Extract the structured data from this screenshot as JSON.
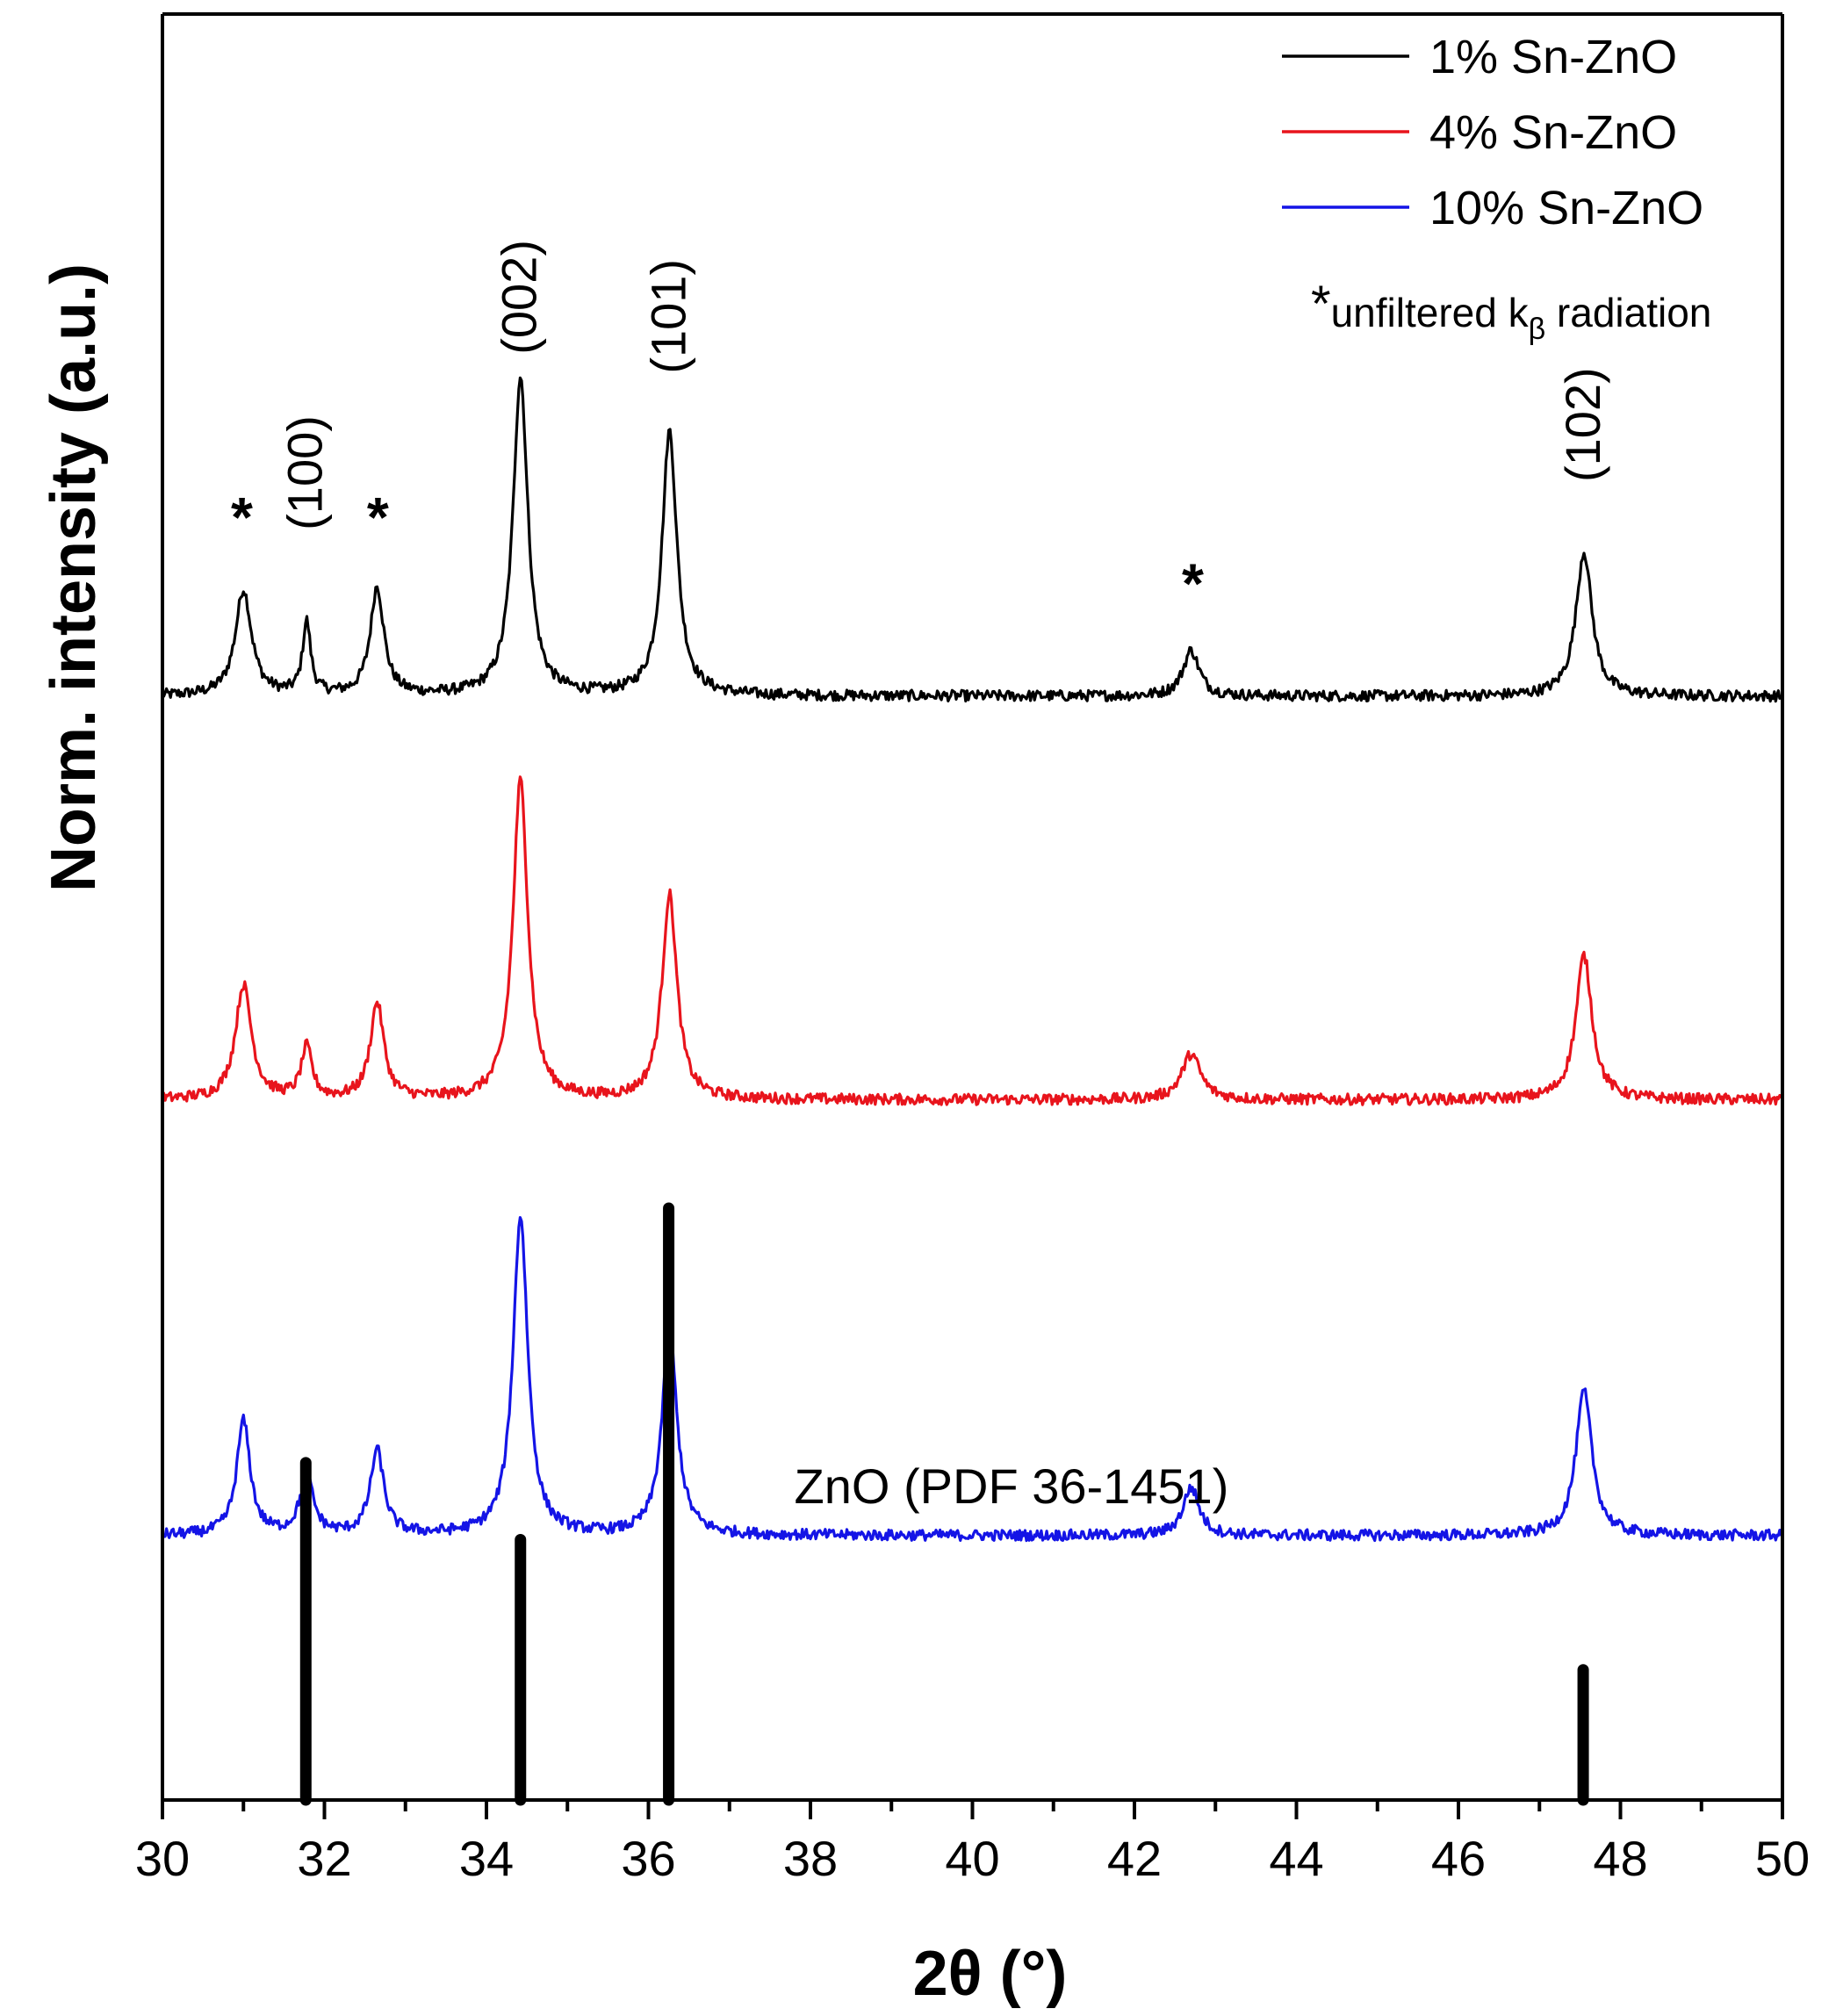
{
  "chart_data": {
    "type": "line",
    "title": "",
    "xlabel_main": "2θ",
    "xlabel_unit": "(°)",
    "ylabel": "Norm. intensity (a.u.)",
    "xlim": [
      30,
      50
    ],
    "ylim": [
      0,
      1
    ],
    "x_ticks": [
      "30",
      "32",
      "34",
      "36",
      "38",
      "40",
      "42",
      "44",
      "46",
      "48",
      "50"
    ],
    "series": [
      {
        "name": "1% Sn-ZnO",
        "color": "#000000",
        "baseline": 0.618,
        "peaks": [
          [
            31.0,
            0.88,
            0.12
          ],
          [
            31.78,
            0.6,
            0.06
          ],
          [
            32.65,
            0.9,
            0.1
          ],
          [
            34.42,
            2.65,
            0.11
          ],
          [
            36.26,
            2.2,
            0.11
          ],
          [
            42.7,
            0.38,
            0.12
          ],
          [
            47.55,
            1.2,
            0.12
          ]
        ]
      },
      {
        "name": "4% Sn-ZnO",
        "color": "#e8141c",
        "baseline": 0.392,
        "peaks": [
          [
            31.0,
            0.95,
            0.12
          ],
          [
            31.78,
            0.42,
            0.08
          ],
          [
            32.65,
            0.8,
            0.1
          ],
          [
            34.42,
            2.65,
            0.11
          ],
          [
            36.26,
            1.7,
            0.11
          ],
          [
            42.7,
            0.38,
            0.14
          ],
          [
            47.55,
            1.2,
            0.12
          ]
        ]
      },
      {
        "name": "10% Sn-ZnO",
        "color": "#1414e6",
        "baseline": 0.148,
        "peaks": [
          [
            31.0,
            0.95,
            0.1
          ],
          [
            31.78,
            0.48,
            0.1
          ],
          [
            32.65,
            0.7,
            0.1
          ],
          [
            34.42,
            2.65,
            0.11
          ],
          [
            36.26,
            1.7,
            0.11
          ],
          [
            42.7,
            0.4,
            0.12
          ],
          [
            47.55,
            1.2,
            0.12
          ]
        ]
      }
    ],
    "reference": {
      "label": "ZnO (PDF 36-1451)",
      "sticks": [
        [
          31.77,
          0.57
        ],
        [
          34.42,
          0.44
        ],
        [
          36.25,
          1.0
        ],
        [
          47.54,
          0.22
        ]
      ]
    },
    "peak_labels": [
      {
        "text": "(100)",
        "x": 31.77,
        "y": 1.38
      },
      {
        "text": "(002)",
        "x": 34.42,
        "y": 2.84
      },
      {
        "text": "(101)",
        "x": 36.26,
        "y": 2.68
      },
      {
        "text": "(102)",
        "x": 47.55,
        "y": 1.78
      }
    ],
    "asterisks": [
      {
        "text": "*",
        "x": 30.98,
        "y": 1.62
      },
      {
        "text": "*",
        "x": 32.66,
        "y": 1.62
      },
      {
        "text": "*",
        "x": 42.72,
        "y": 1.07
      }
    ],
    "legend": {
      "position": "top-right",
      "note_star": "*",
      "note_text": "unfiltered k",
      "note_sub": "β",
      "note_tail": " radiation"
    }
  }
}
